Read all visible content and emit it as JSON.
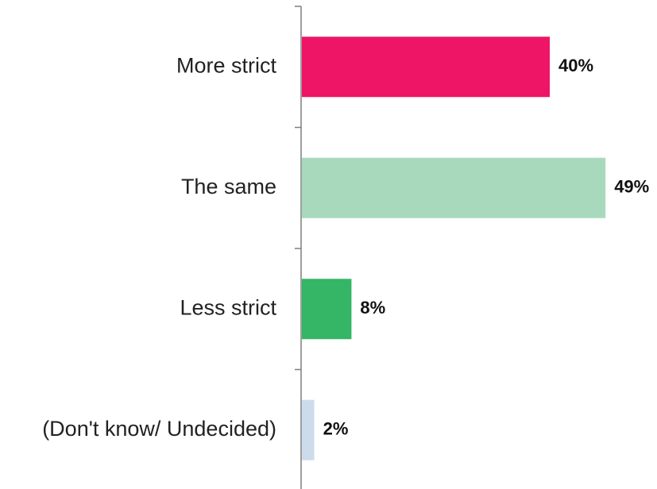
{
  "chart_data": {
    "type": "bar",
    "orientation": "horizontal",
    "categories": [
      "More strict",
      "The same",
      "Less strict",
      "(Don't know/ Undecided)"
    ],
    "values": [
      40,
      49,
      8,
      2
    ],
    "value_labels": [
      "40%",
      "49%",
      "8%",
      "2%"
    ],
    "unit": "%",
    "colors": [
      "#ee1566",
      "#a9d9bd",
      "#35b566",
      "#cddcec"
    ],
    "xlim": [
      0,
      49
    ],
    "title": "",
    "xlabel": "",
    "ylabel": "",
    "grid": false,
    "legend": "none"
  }
}
